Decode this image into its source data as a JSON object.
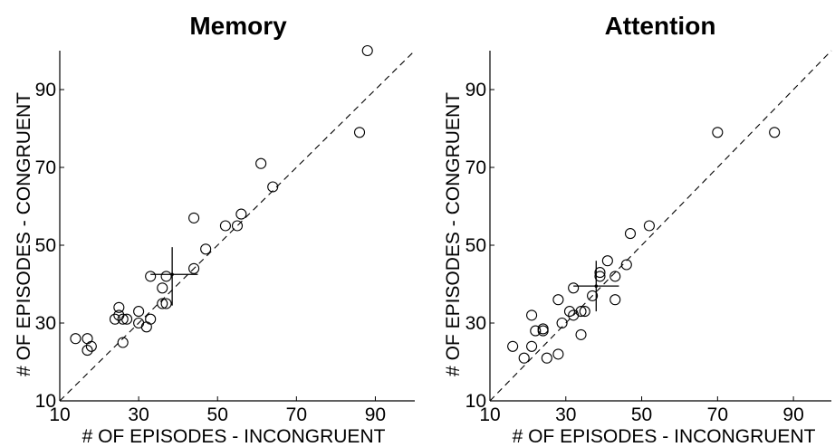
{
  "chart_data": [
    {
      "type": "scatter",
      "title": "Memory",
      "xlabel": "# OF EPISODES - INCONGRUENT",
      "ylabel": "# OF EPISODES - CONGRUENT",
      "xlim": [
        10,
        100
      ],
      "ylim": [
        10,
        100
      ],
      "xticks": [
        "10",
        "30",
        "50",
        "70",
        "90"
      ],
      "yticks": [
        "10",
        "30",
        "50",
        "70",
        "90"
      ],
      "grid": false,
      "reference_line": "y = x (dashed)",
      "points": [
        [
          14,
          26
        ],
        [
          17,
          26
        ],
        [
          17,
          23
        ],
        [
          18,
          24
        ],
        [
          24,
          31
        ],
        [
          25,
          32
        ],
        [
          25,
          34
        ],
        [
          26,
          31
        ],
        [
          26,
          25
        ],
        [
          27,
          31
        ],
        [
          30,
          30
        ],
        [
          30,
          33
        ],
        [
          32,
          29
        ],
        [
          33,
          31
        ],
        [
          33,
          42
        ],
        [
          36,
          35
        ],
        [
          36,
          39
        ],
        [
          37,
          35
        ],
        [
          37,
          42
        ],
        [
          44,
          57
        ],
        [
          44,
          44
        ],
        [
          47,
          49
        ],
        [
          52,
          55
        ],
        [
          55,
          55
        ],
        [
          56,
          58
        ],
        [
          61,
          71
        ],
        [
          64,
          65
        ],
        [
          86,
          79
        ],
        [
          88,
          100
        ]
      ],
      "mean": [
        38.5,
        42.5
      ],
      "error_x": [
        33,
        45
      ],
      "error_y": [
        34.5,
        49.5
      ]
    },
    {
      "type": "scatter",
      "title": "Attention",
      "xlabel": "# OF EPISODES - INCONGRUENT",
      "ylabel": "# OF EPISODES - CONGRUENT",
      "xlim": [
        10,
        100
      ],
      "ylim": [
        10,
        100
      ],
      "xticks": [
        "10",
        "30",
        "50",
        "70",
        "90"
      ],
      "yticks": [
        "10",
        "30",
        "50",
        "70",
        "90"
      ],
      "grid": false,
      "reference_line": "y = x (dashed)",
      "points": [
        [
          16,
          24
        ],
        [
          19,
          21
        ],
        [
          21,
          24
        ],
        [
          21,
          32
        ],
        [
          22,
          28
        ],
        [
          24,
          28
        ],
        [
          24,
          28.5
        ],
        [
          25,
          21
        ],
        [
          28,
          22
        ],
        [
          28,
          36
        ],
        [
          29,
          30
        ],
        [
          31,
          33
        ],
        [
          32,
          32
        ],
        [
          32,
          39
        ],
        [
          34,
          27
        ],
        [
          34,
          33
        ],
        [
          35,
          33
        ],
        [
          37,
          37
        ],
        [
          39,
          42
        ],
        [
          39,
          43
        ],
        [
          41,
          46
        ],
        [
          43,
          36
        ],
        [
          43,
          42
        ],
        [
          46,
          45
        ],
        [
          47,
          53
        ],
        [
          52,
          55
        ],
        [
          70,
          79
        ],
        [
          85,
          79
        ]
      ],
      "mean": [
        38,
        39.5
      ],
      "error_x": [
        32,
        44
      ],
      "error_y": [
        33,
        46
      ]
    }
  ]
}
